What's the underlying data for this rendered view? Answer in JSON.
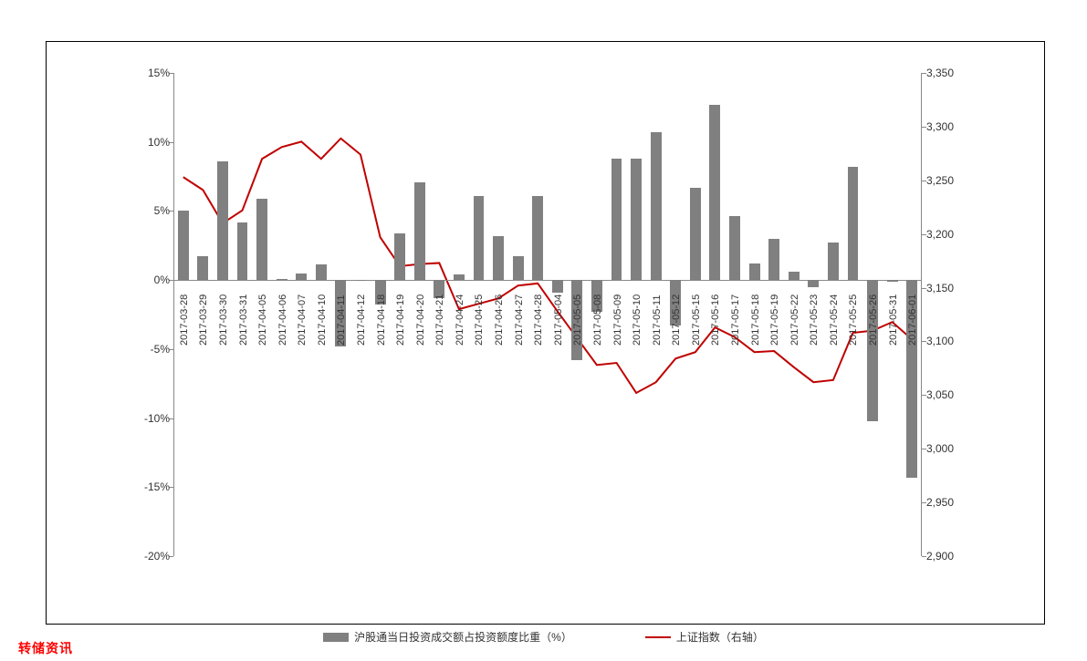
{
  "chart": {
    "type": "bar-line-combo",
    "background_color": "#ffffff",
    "border_color": "#000000",
    "bar_color": "#808080",
    "line_color": "#c00000",
    "line_width": 2,
    "axis_color": "#888888",
    "tick_font_size": 12,
    "xlabel_font_size": 11,
    "xlabel_rotation": -90,
    "bar_width_ratio": 0.55,
    "left_axis": {
      "min": -20,
      "max": 15,
      "step": 5,
      "format": "percent",
      "ticks": [
        "-20%",
        "-15%",
        "-10%",
        "-5%",
        "0%",
        "5%",
        "10%",
        "15%"
      ]
    },
    "right_axis": {
      "min": 2900,
      "max": 3350,
      "step": 50,
      "ticks": [
        "2,900",
        "2,950",
        "3,000",
        "3,050",
        "3,100",
        "3,150",
        "3,200",
        "3,250",
        "3,300",
        "3,350"
      ]
    },
    "categories": [
      "2017-03-28",
      "2017-03-29",
      "2017-03-30",
      "2017-03-31",
      "2017-04-05",
      "2017-04-06",
      "2017-04-07",
      "2017-04-10",
      "2017-04-11",
      "2017-04-12",
      "2017-04-18",
      "2017-04-19",
      "2017-04-20",
      "2017-04-21",
      "2017-04-24",
      "2017-04-25",
      "2017-04-26",
      "2017-04-27",
      "2017-04-28",
      "2017-05-04",
      "2017-05-05",
      "2017-05-08",
      "2017-05-09",
      "2017-05-10",
      "2017-05-11",
      "2017-05-12",
      "2017-05-15",
      "2017-05-16",
      "2017-05-17",
      "2017-05-18",
      "2017-05-19",
      "2017-05-22",
      "2017-05-23",
      "2017-05-24",
      "2017-05-25",
      "2017-05-26",
      "2017-05-31",
      "2017-06-01"
    ],
    "bar_values": [
      5.0,
      1.7,
      8.6,
      4.2,
      5.9,
      0.1,
      0.5,
      1.1,
      -4.8,
      0.0,
      -1.8,
      3.4,
      7.1,
      -1.3,
      0.4,
      6.1,
      3.2,
      1.7,
      6.1,
      -0.9,
      -5.8,
      -2.3,
      8.8,
      8.8,
      10.7,
      -3.3,
      6.7,
      12.7,
      4.6,
      1.2,
      3.0,
      0.6,
      -0.5,
      2.7,
      8.2,
      -10.2,
      -0.1,
      -14.3
    ],
    "line_values": [
      3253,
      3241,
      3210,
      3222,
      3270,
      3281,
      3286,
      3270,
      3289,
      3274,
      3197,
      3170,
      3172,
      3173,
      3130,
      3135,
      3140,
      3152,
      3154,
      3128,
      3103,
      3078,
      3080,
      3052,
      3062,
      3084,
      3090,
      3113,
      3104,
      3090,
      3091,
      3076,
      3062,
      3064,
      3108,
      3110,
      3118,
      3102
    ],
    "legend": {
      "bar_label": "沪股通当日投资成交额占投资额度比重（%）",
      "line_label": "上证指数（右轴）"
    }
  },
  "footer_text": "转储资讯"
}
